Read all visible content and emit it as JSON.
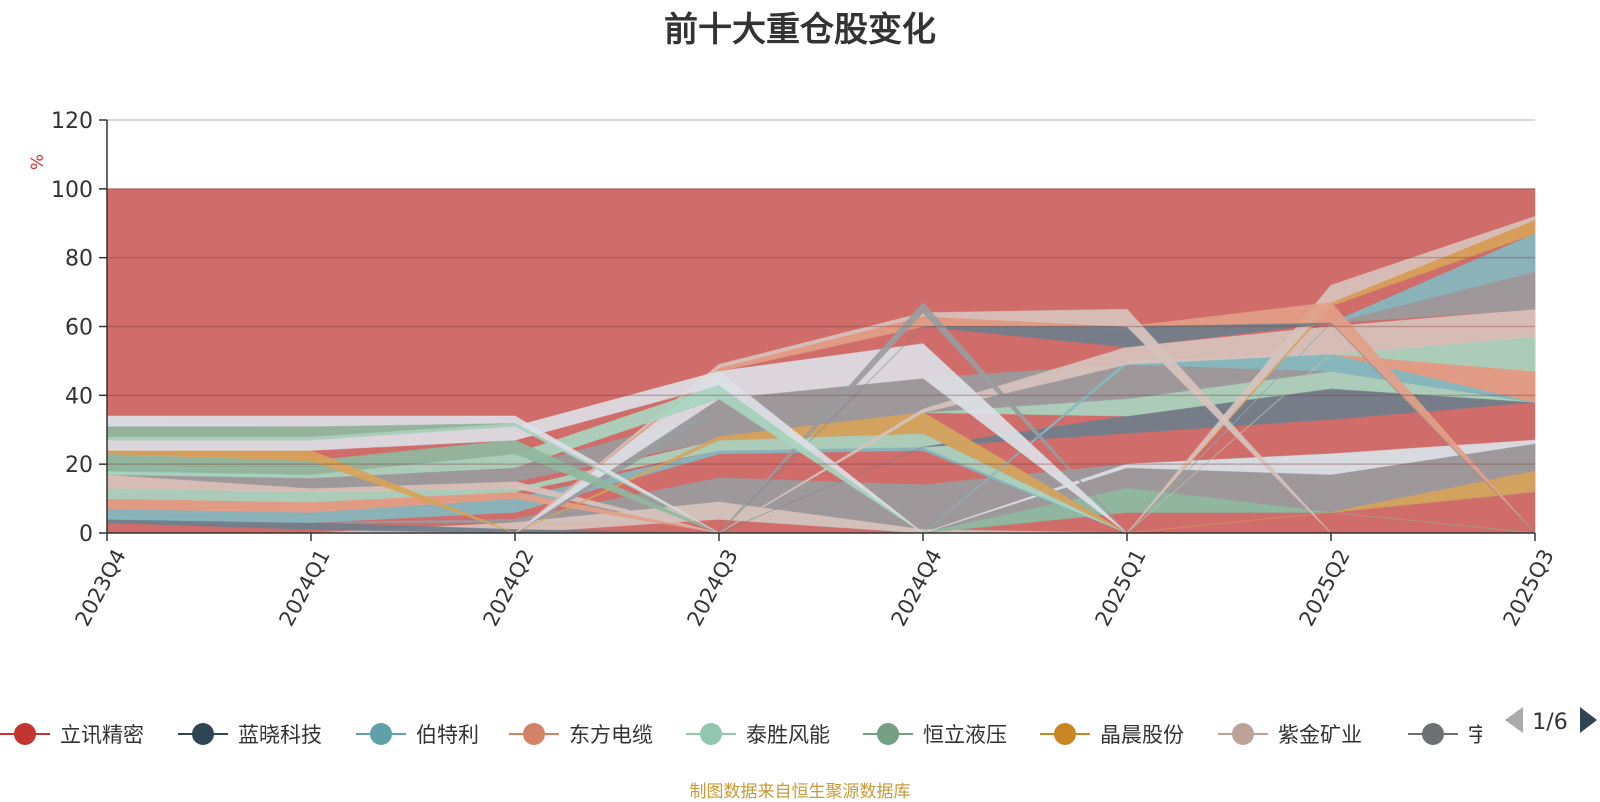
{
  "chart_data": {
    "type": "area",
    "title": "前十大重仓股变化",
    "ylabel": "%",
    "ylim": [
      0,
      120
    ],
    "yticks": [
      0,
      20,
      40,
      60,
      80,
      100,
      120
    ],
    "categories": [
      "2023Q4",
      "2024Q1",
      "2024Q2",
      "2024Q3",
      "2024Q4",
      "2025Q1",
      "2025Q2",
      "2025Q3"
    ],
    "grid": true,
    "legend_position": "bottom",
    "bands": [
      {
        "color": "#d06c6a",
        "lower": [
          0,
          0,
          0,
          0,
          0,
          0,
          0,
          0
        ],
        "upper": [
          100,
          100,
          100,
          100,
          100,
          100,
          100,
          100
        ]
      },
      {
        "color": "#9a9ca0",
        "lower": [
          3,
          3,
          3,
          4,
          0,
          6,
          6,
          12
        ],
        "upper": [
          5,
          3,
          4,
          16,
          14,
          20,
          23,
          26
        ]
      },
      {
        "color": "#d7c3bd",
        "lower": [
          0,
          0,
          0,
          4,
          0,
          0,
          0,
          0
        ],
        "upper": [
          0,
          0,
          3,
          9,
          1,
          0,
          0,
          0
        ]
      },
      {
        "color": "#8fb8a0",
        "lower": [
          0,
          0,
          0,
          0,
          0,
          6,
          6,
          0
        ],
        "upper": [
          0,
          0,
          0,
          0,
          0,
          13,
          6,
          0
        ]
      },
      {
        "color": "#d7a35a",
        "lower": [
          0,
          0,
          0,
          0,
          0,
          0,
          6,
          12
        ],
        "upper": [
          0,
          0,
          0,
          0,
          0,
          0,
          6,
          18
        ]
      },
      {
        "color": "#dcdfe6",
        "lower": [
          0,
          0,
          0,
          0,
          0,
          19,
          17,
          26
        ],
        "upper": [
          0,
          0,
          0,
          0,
          0,
          20,
          23,
          27
        ]
      },
      {
        "color": "#6e7f8c",
        "lower": [
          3,
          1,
          0,
          0,
          0,
          0,
          0,
          0
        ],
        "upper": [
          4,
          3,
          1,
          0,
          0,
          0,
          0,
          0
        ]
      },
      {
        "color": "#86b8c0",
        "lower": [
          4,
          3,
          6,
          23,
          24,
          0,
          0,
          0
        ],
        "upper": [
          7,
          6,
          10,
          24,
          25,
          0,
          0,
          0
        ]
      },
      {
        "color": "#e2a088",
        "lower": [
          7,
          6,
          10,
          0,
          0,
          0,
          0,
          0
        ],
        "upper": [
          10,
          9,
          12,
          0,
          0,
          0,
          0,
          0
        ]
      },
      {
        "color": "#a8d5c0",
        "lower": [
          10,
          9,
          12,
          24,
          25,
          0,
          0,
          0
        ],
        "upper": [
          13,
          12,
          13,
          27,
          29,
          0,
          0,
          0
        ]
      },
      {
        "color": "#d7c3bd",
        "lower": [
          13,
          12,
          13,
          0,
          0,
          0,
          0,
          0
        ],
        "upper": [
          17,
          13,
          15,
          0,
          0,
          0,
          0,
          0
        ]
      },
      {
        "color": "#9a9ca0",
        "lower": [
          17,
          13,
          15,
          27,
          29,
          0,
          0,
          0
        ],
        "upper": [
          21,
          16,
          19,
          35,
          35,
          0,
          0,
          0
        ]
      },
      {
        "color": "#6e7f8c",
        "lower": [
          0,
          0,
          0,
          0,
          25,
          29,
          33,
          38
        ],
        "upper": [
          0,
          0,
          0,
          0,
          25,
          34,
          42,
          38
        ]
      },
      {
        "color": "#a8d5c0",
        "lower": [
          0,
          0,
          0,
          0,
          35,
          34,
          42,
          38
        ],
        "upper": [
          0,
          0,
          0,
          0,
          35,
          39,
          47,
          38
        ]
      },
      {
        "color": "#9a9ca0",
        "lower": [
          0,
          0,
          0,
          35,
          35,
          39,
          47,
          38
        ],
        "upper": [
          0,
          0,
          0,
          39,
          45,
          49,
          52,
          38
        ]
      },
      {
        "color": "#d7a35a",
        "lower": [
          0,
          0,
          0,
          27,
          29,
          0,
          0,
          0
        ],
        "upper": [
          0,
          0,
          0,
          28,
          35,
          0,
          0,
          0
        ]
      },
      {
        "color": "#86b8c0",
        "lower": [
          0,
          0,
          0,
          0,
          0,
          49,
          47,
          38
        ],
        "upper": [
          0,
          0,
          0,
          0,
          0,
          50,
          52,
          38
        ]
      },
      {
        "color": "#e2a088",
        "lower": [
          0,
          0,
          0,
          0,
          0,
          0,
          52,
          38
        ],
        "upper": [
          0,
          0,
          0,
          0,
          0,
          0,
          52,
          47
        ]
      },
      {
        "color": "#a8d5c0",
        "lower": [
          0,
          0,
          0,
          0,
          0,
          0,
          52,
          47
        ],
        "upper": [
          0,
          0,
          0,
          0,
          0,
          0,
          52,
          57
        ]
      },
      {
        "color": "#d7c3bd",
        "lower": [
          0,
          0,
          0,
          0,
          35,
          49,
          52,
          57
        ],
        "upper": [
          0,
          0,
          0,
          0,
          36,
          54,
          60,
          65
        ]
      },
      {
        "color": "#9a9ca0",
        "lower": [
          0,
          0,
          0,
          0,
          0,
          0,
          61,
          65
        ],
        "upper": [
          0,
          0,
          0,
          0,
          0,
          0,
          61,
          76
        ]
      },
      {
        "color": "#86b8c0",
        "lower": [
          0,
          0,
          0,
          0,
          0,
          0,
          61,
          76
        ],
        "upper": [
          0,
          0,
          0,
          0,
          0,
          0,
          61,
          87
        ]
      },
      {
        "color": "#d7a35a",
        "lower": [
          0,
          0,
          0,
          0,
          0,
          0,
          66,
          87
        ],
        "upper": [
          0,
          0,
          0,
          0,
          0,
          0,
          67,
          91
        ]
      },
      {
        "color": "#d7c3bd",
        "lower": [
          0,
          0,
          0,
          0,
          0,
          0,
          67,
          91
        ],
        "upper": [
          0,
          0,
          0,
          0,
          0,
          0,
          72,
          92
        ]
      },
      {
        "color": "#dcdfe6",
        "lower": [
          0,
          0,
          0,
          39,
          45,
          0,
          0,
          0
        ],
        "upper": [
          0,
          0,
          0,
          47,
          55,
          0,
          0,
          0
        ]
      },
      {
        "color": "#e2a088",
        "lower": [
          0,
          0,
          0,
          47,
          60,
          59,
          61,
          0
        ],
        "upper": [
          0,
          0,
          0,
          48,
          63,
          60,
          67,
          0
        ]
      },
      {
        "color": "#6e7f8c",
        "lower": [
          0,
          0,
          0,
          0,
          60,
          54,
          61,
          0
        ],
        "upper": [
          0,
          0,
          0,
          0,
          60,
          60,
          61,
          0
        ]
      },
      {
        "color": "#d7c3bd",
        "lower": [
          0,
          0,
          0,
          48,
          63,
          60,
          0,
          0
        ],
        "upper": [
          0,
          0,
          0,
          49,
          64,
          65,
          0,
          0
        ]
      },
      {
        "color": "#9a9ca0",
        "lower": [
          0,
          0,
          0,
          0,
          64,
          0,
          0,
          0
        ],
        "upper": [
          0,
          0,
          0,
          0,
          67,
          0,
          0,
          0
        ]
      },
      {
        "color": "#a8d5c0",
        "lower": [
          17,
          16,
          19,
          39,
          0,
          0,
          0,
          0
        ],
        "upper": [
          18,
          17,
          23,
          43,
          0,
          0,
          0,
          0
        ]
      },
      {
        "color": "#8fb8a0",
        "lower": [
          18,
          17,
          23,
          0,
          0,
          0,
          0,
          0
        ],
        "upper": [
          23,
          21,
          27,
          0,
          0,
          0,
          0,
          0
        ]
      },
      {
        "color": "#d7a35a",
        "lower": [
          23,
          21,
          0,
          0,
          0,
          0,
          0,
          0
        ],
        "upper": [
          24,
          24,
          0,
          0,
          0,
          0,
          0,
          0
        ]
      },
      {
        "color": "#dcdfe6",
        "lower": [
          24,
          24,
          27,
          43,
          0,
          0,
          0,
          0
        ],
        "upper": [
          27,
          27,
          31,
          47,
          0,
          0,
          0,
          0
        ]
      },
      {
        "color": "#a8d5c0",
        "lower": [
          27,
          27,
          31,
          0,
          0,
          0,
          0,
          0
        ],
        "upper": [
          28,
          28,
          32,
          0,
          0,
          0,
          0,
          0
        ]
      },
      {
        "color": "#8fb8a0",
        "lower": [
          28,
          28,
          32,
          0,
          0,
          0,
          0,
          0
        ],
        "upper": [
          31,
          31,
          32,
          0,
          0,
          0,
          0,
          0
        ]
      },
      {
        "color": "#9a9ca0",
        "lower": [
          31,
          31,
          32,
          0,
          0,
          0,
          0,
          0
        ],
        "upper": [
          33,
          31,
          32,
          0,
          0,
          0,
          0,
          0
        ]
      },
      {
        "color": "#dcdfe6",
        "lower": [
          31,
          31,
          32,
          0,
          0,
          0,
          0,
          0
        ],
        "upper": [
          34,
          34,
          34,
          0,
          0,
          0,
          0,
          0
        ]
      },
      {
        "color": "#d06c6a",
        "lower": [
          0,
          0,
          0,
          0,
          0,
          0,
          0,
          0
        ],
        "upper": [
          0,
          0,
          0,
          0,
          0,
          0,
          0,
          0
        ]
      }
    ],
    "legend": [
      {
        "name": "立讯精密",
        "color": "#c23531"
      },
      {
        "name": "蓝晓科技",
        "color": "#2f4554"
      },
      {
        "name": "伯特利",
        "color": "#61a0a8"
      },
      {
        "name": "东方电缆",
        "color": "#d48265"
      },
      {
        "name": "泰胜风能",
        "color": "#91c7ae"
      },
      {
        "name": "恒立液压",
        "color": "#749f83"
      },
      {
        "name": "晶晨股份",
        "color": "#ca8622"
      },
      {
        "name": "紫金矿业",
        "color": "#bda29a"
      },
      {
        "name": "宇通",
        "color": "#6e7074"
      }
    ],
    "legend_page": "1/6"
  },
  "source_note": "制图数据来自恒生聚源数据库"
}
